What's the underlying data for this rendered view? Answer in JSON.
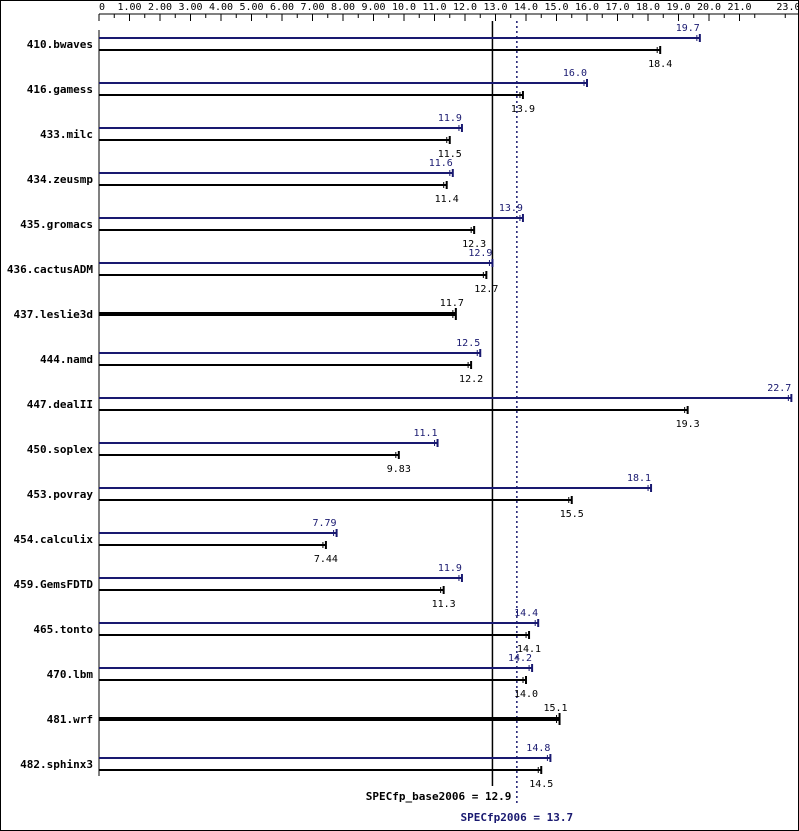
{
  "chart_data": {
    "type": "bar",
    "orientation": "horizontal",
    "axis": {
      "ticks": [
        "0",
        "1.00",
        "2.00",
        "3.00",
        "4.00",
        "5.00",
        "6.00",
        "7.00",
        "8.00",
        "9.00",
        "10.0",
        "11.0",
        "12.0",
        "13.0",
        "14.0",
        "15.0",
        "16.0",
        "17.0",
        "18.0",
        "19.0",
        "20.0",
        "21.0",
        "23.0"
      ],
      "tick_values": [
        0,
        1,
        2,
        3,
        4,
        5,
        6,
        7,
        8,
        9,
        10,
        11,
        12,
        13,
        14,
        15,
        16,
        17,
        18,
        19,
        20,
        21,
        23
      ],
      "range": [
        0,
        23
      ]
    },
    "colors": {
      "peak": "#191970",
      "base": "#000000"
    },
    "series": [
      {
        "key": "peak",
        "color": "#191970"
      },
      {
        "key": "base",
        "color": "#000000"
      }
    ],
    "benchmarks": [
      {
        "name": "410.bwaves",
        "peak": 19.7,
        "peak_label": "19.7",
        "base": 18.4,
        "base_label": "18.4",
        "merged": false
      },
      {
        "name": "416.gamess",
        "peak": 16.0,
        "peak_label": "16.0",
        "base": 13.9,
        "base_label": "13.9",
        "merged": false
      },
      {
        "name": "433.milc",
        "peak": 11.9,
        "peak_label": "11.9",
        "base": 11.5,
        "base_label": "11.5",
        "merged": false
      },
      {
        "name": "434.zeusmp",
        "peak": 11.6,
        "peak_label": "11.6",
        "base": 11.4,
        "base_label": "11.4",
        "merged": false
      },
      {
        "name": "435.gromacs",
        "peak": 13.9,
        "peak_label": "13.9",
        "base": 12.3,
        "base_label": "12.3",
        "merged": false
      },
      {
        "name": "436.cactusADM",
        "peak": 12.9,
        "peak_label": "12.9",
        "base": 12.7,
        "base_label": "12.7",
        "merged": false
      },
      {
        "name": "437.leslie3d",
        "peak": 11.7,
        "peak_label": "",
        "base": 11.7,
        "base_label": "11.7",
        "merged": true
      },
      {
        "name": "444.namd",
        "peak": 12.5,
        "peak_label": "12.5",
        "base": 12.2,
        "base_label": "12.2",
        "merged": false
      },
      {
        "name": "447.dealII",
        "peak": 22.7,
        "peak_label": "22.7",
        "base": 19.3,
        "base_label": "19.3",
        "merged": false
      },
      {
        "name": "450.soplex",
        "peak": 11.1,
        "peak_label": "11.1",
        "base": 9.83,
        "base_label": "9.83",
        "merged": false
      },
      {
        "name": "453.povray",
        "peak": 18.1,
        "peak_label": "18.1",
        "base": 15.5,
        "base_label": "15.5",
        "merged": false
      },
      {
        "name": "454.calculix",
        "peak": 7.79,
        "peak_label": "7.79",
        "base": 7.44,
        "base_label": "7.44",
        "merged": false
      },
      {
        "name": "459.GemsFDTD",
        "peak": 11.9,
        "peak_label": "11.9",
        "base": 11.3,
        "base_label": "11.3",
        "merged": false
      },
      {
        "name": "465.tonto",
        "peak": 14.4,
        "peak_label": "14.4",
        "base": 14.1,
        "base_label": "14.1",
        "merged": false
      },
      {
        "name": "470.lbm",
        "peak": 14.2,
        "peak_label": "14.2",
        "base": 14.0,
        "base_label": "14.0",
        "merged": false
      },
      {
        "name": "481.wrf",
        "peak": 15.1,
        "peak_label": "",
        "base": 15.1,
        "base_label": "15.1",
        "merged": true
      },
      {
        "name": "482.sphinx3",
        "peak": 14.8,
        "peak_label": "14.8",
        "base": 14.5,
        "base_label": "14.5",
        "merged": false
      }
    ],
    "reference_lines": [
      {
        "key": "base",
        "label": "SPECfp_base2006 = 12.9",
        "value": 12.9,
        "style": "solid",
        "color": "#000000"
      },
      {
        "key": "peak",
        "label": "SPECfp2006 = 13.7",
        "value": 13.7,
        "style": "dotted",
        "color": "#191970"
      }
    ]
  }
}
